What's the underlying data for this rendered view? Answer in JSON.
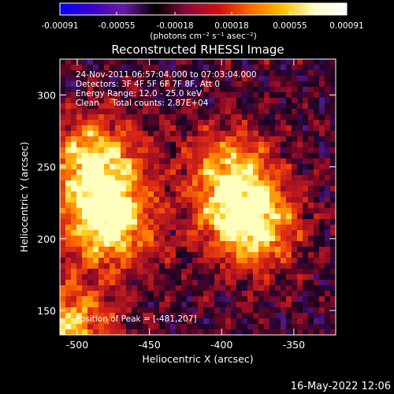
{
  "colorbar": {
    "ticks": [
      "-0.00091",
      "-0.00055",
      "-0.00018",
      "0.00018",
      "0.00055",
      "0.00091"
    ],
    "unit_label": "(photons cm⁻² s⁻¹ asec⁻²)",
    "colors": [
      "#0000ff",
      "#3a00c8",
      "#6a1aa0",
      "#000000",
      "#8a0a3a",
      "#d01010",
      "#ff6a00",
      "#ffc000",
      "#ffffc8",
      "#ffffff"
    ]
  },
  "chart_data": {
    "type": "heatmap",
    "title": "Reconstructed RHESSI Image",
    "xlabel": "Heliocentric X (arcsec)",
    "ylabel": "Heliocentric Y (arcsec)",
    "xlim": [
      -512,
      -321
    ],
    "ylim": [
      133,
      325
    ],
    "xticks": [
      -500,
      -450,
      -400,
      -350
    ],
    "yticks": [
      150,
      200,
      250,
      300
    ],
    "xtick_labels": [
      "-500",
      "-450",
      "-400",
      "-350"
    ],
    "ytick_labels": [
      "150",
      "200",
      "250",
      "300"
    ],
    "info_lines": [
      "24-Nov-2011 06:57:04.000 to 07:03:04.000",
      "Detectors: 3F 4F 5F 6F 7F 8F, Att 0",
      "Energy Range: 12.0 - 25.0 keV",
      "Clean     Total counts: 2.87E+04"
    ],
    "peak_label": "Position of Peak = [-481,207]",
    "peak_position": [
      -481,
      207
    ],
    "value_range": [
      -0.00091,
      0.00091
    ],
    "bright_regions": [
      {
        "x": -478,
        "y": 212,
        "level": 1.0
      },
      {
        "x": -488,
        "y": 255,
        "level": 0.85
      },
      {
        "x": -380,
        "y": 210,
        "level": 0.95
      },
      {
        "x": -395,
        "y": 245,
        "level": 0.7
      },
      {
        "x": -506,
        "y": 140,
        "level": 0.75
      }
    ]
  },
  "footer": {
    "timestamp": "16-May-2022 12:06"
  }
}
